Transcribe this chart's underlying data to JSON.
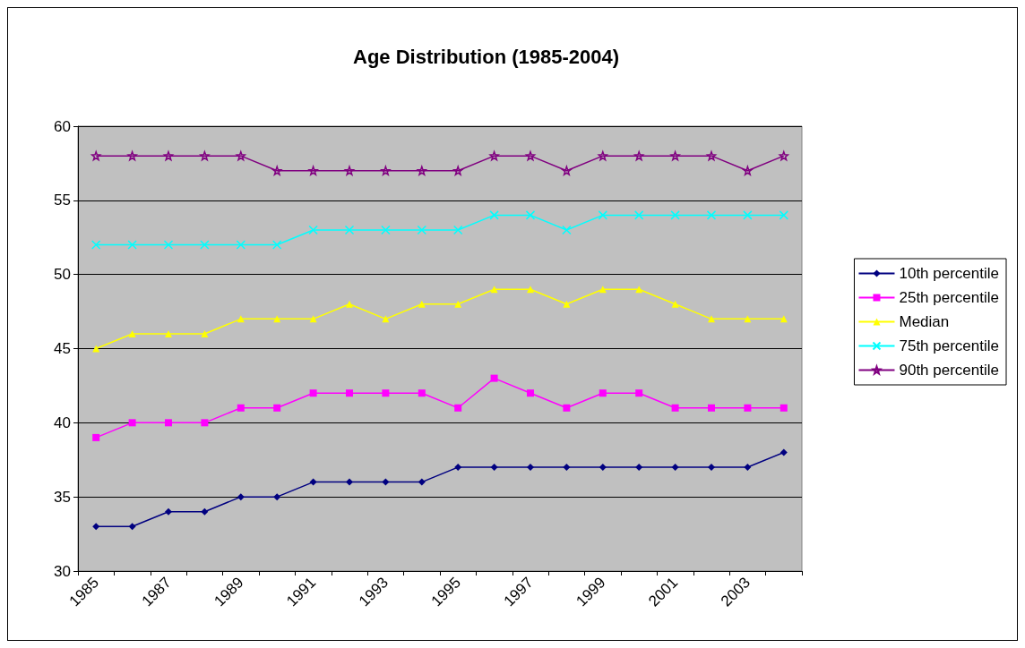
{
  "chart_data": {
    "type": "line",
    "title": "Age Distribution (1985-2004)",
    "categories": [
      "1985",
      null,
      "1987",
      null,
      "1989",
      null,
      "1991",
      null,
      "1993",
      null,
      "1995",
      null,
      "1997",
      null,
      "1999",
      null,
      "2001",
      null,
      "2003",
      null
    ],
    "series": [
      {
        "name": "10th percentile",
        "color": "#000080",
        "marker": "diamond",
        "values": [
          33,
          33,
          34,
          34,
          35,
          35,
          36,
          36,
          36,
          36,
          37,
          37,
          37,
          37,
          37,
          37,
          37,
          37,
          37,
          38
        ]
      },
      {
        "name": "25th percentile",
        "color": "#ff00ff",
        "marker": "square",
        "values": [
          39,
          40,
          40,
          40,
          41,
          41,
          42,
          42,
          42,
          42,
          41,
          43,
          42,
          41,
          42,
          42,
          41,
          41,
          41,
          41
        ]
      },
      {
        "name": "Median",
        "color": "#ffff00",
        "marker": "triangle",
        "values": [
          45,
          46,
          46,
          46,
          47,
          47,
          47,
          48,
          47,
          48,
          48,
          49,
          49,
          48,
          49,
          49,
          48,
          47,
          47,
          47
        ]
      },
      {
        "name": "75th percentile",
        "color": "#00ffff",
        "marker": "cross",
        "values": [
          52,
          52,
          52,
          52,
          52,
          52,
          53,
          53,
          53,
          53,
          53,
          54,
          54,
          53,
          54,
          54,
          54,
          54,
          54,
          54
        ]
      },
      {
        "name": "90th percentile",
        "color": "#800080",
        "marker": "star",
        "values": [
          58,
          58,
          58,
          58,
          58,
          57,
          57,
          57,
          57,
          57,
          57,
          58,
          58,
          57,
          58,
          58,
          58,
          58,
          57,
          58
        ]
      }
    ],
    "ylim": [
      30,
      60
    ],
    "yticks": [
      30,
      35,
      40,
      45,
      50,
      55,
      60
    ],
    "grid": "y",
    "legend": "right",
    "line_style": "solid"
  }
}
